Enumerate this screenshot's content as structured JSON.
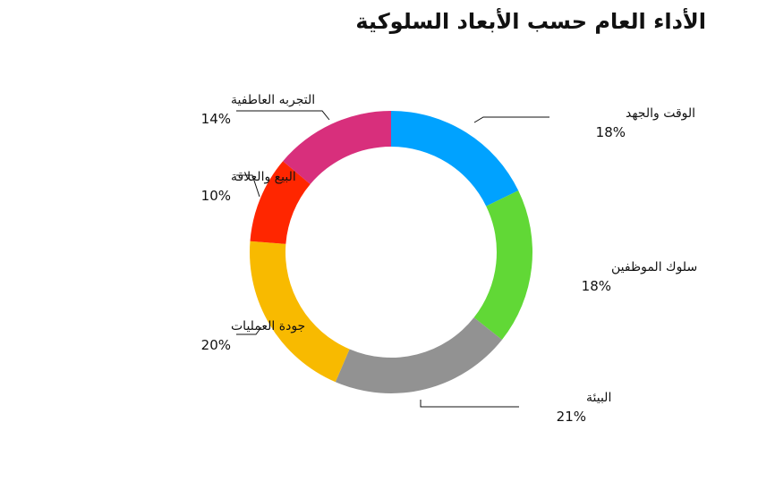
{
  "chart_data": {
    "type": "pie",
    "style": "donut",
    "title": "الأداء العام حسب الأبعاد السلوكية",
    "legend": "none",
    "slices": [
      {
        "label": "الوقت والجهد",
        "value": 18,
        "value_label": "18%",
        "color": "#00A2FF"
      },
      {
        "label": "سلوك الموظفين",
        "value": 18,
        "value_label": "18%",
        "color": "#61D836"
      },
      {
        "label": "البيئة",
        "value": 21,
        "value_label": "21%",
        "color": "#929292"
      },
      {
        "label": "جودة العمليات",
        "value": 20,
        "value_label": "20%",
        "color": "#F8BA00"
      },
      {
        "label": "البيع والعلاقة",
        "value": 10,
        "value_label": "10%",
        "color": "#FF2600"
      },
      {
        "label": "التجربه العاطفية",
        "value": 14,
        "value_label": "14%",
        "color": "#D82F7C"
      }
    ]
  }
}
